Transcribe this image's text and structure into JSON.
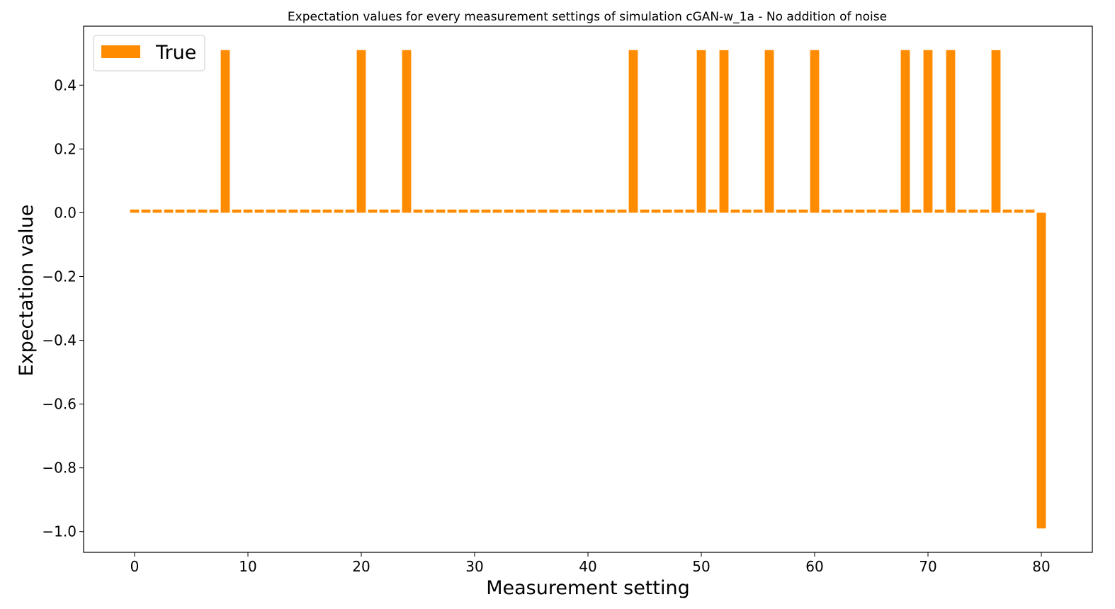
{
  "chart_data": {
    "type": "bar",
    "title": "Expectation values for every measurement settings of simulation cGAN-w_1a - No addition of noise",
    "xlabel": "Measurement setting",
    "ylabel": "Expectation value",
    "xlim": [
      -4.5,
      84.5
    ],
    "ylim": [
      -1.065,
      0.585
    ],
    "xticks": [
      0,
      10,
      20,
      30,
      40,
      50,
      60,
      70,
      80
    ],
    "xtick_labels": [
      "0",
      "10",
      "20",
      "30",
      "40",
      "50",
      "60",
      "70",
      "80"
    ],
    "yticks": [
      -1.0,
      -0.8,
      -0.6,
      -0.4,
      -0.2,
      0.0,
      0.2,
      0.4
    ],
    "ytick_labels": [
      "−1.0",
      "−0.8",
      "−0.6",
      "−0.4",
      "−0.2",
      "0.0",
      "0.2",
      "0.4"
    ],
    "grid": false,
    "legend_position": "top-left",
    "series": [
      {
        "name": "True",
        "color": "#ff8c00",
        "x": [
          0,
          1,
          2,
          3,
          4,
          5,
          6,
          7,
          8,
          9,
          10,
          11,
          12,
          13,
          14,
          15,
          16,
          17,
          18,
          19,
          20,
          21,
          22,
          23,
          24,
          25,
          26,
          27,
          28,
          29,
          30,
          31,
          32,
          33,
          34,
          35,
          36,
          37,
          38,
          39,
          40,
          41,
          42,
          43,
          44,
          45,
          46,
          47,
          48,
          49,
          50,
          51,
          52,
          53,
          54,
          55,
          56,
          57,
          58,
          59,
          60,
          61,
          62,
          63,
          64,
          65,
          66,
          67,
          68,
          69,
          70,
          71,
          72,
          73,
          74,
          75,
          76,
          77,
          78,
          79,
          80
        ],
        "values": [
          0.01,
          0.01,
          0.01,
          0.01,
          0.01,
          0.01,
          0.01,
          0.01,
          0.51,
          0.01,
          0.01,
          0.01,
          0.01,
          0.01,
          0.01,
          0.01,
          0.01,
          0.01,
          0.01,
          0.01,
          0.51,
          0.01,
          0.01,
          0.01,
          0.51,
          0.01,
          0.01,
          0.01,
          0.01,
          0.01,
          0.01,
          0.01,
          0.01,
          0.01,
          0.01,
          0.01,
          0.01,
          0.01,
          0.01,
          0.01,
          0.01,
          0.01,
          0.01,
          0.01,
          0.51,
          0.01,
          0.01,
          0.01,
          0.01,
          0.01,
          0.51,
          0.01,
          0.51,
          0.01,
          0.01,
          0.01,
          0.51,
          0.01,
          0.01,
          0.01,
          0.51,
          0.01,
          0.01,
          0.01,
          0.01,
          0.01,
          0.01,
          0.01,
          0.51,
          0.01,
          0.51,
          0.01,
          0.51,
          0.01,
          0.01,
          0.01,
          0.51,
          0.01,
          0.01,
          0.01,
          -0.99
        ]
      }
    ]
  }
}
